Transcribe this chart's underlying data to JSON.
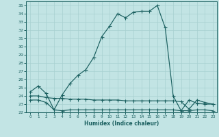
{
  "title": "",
  "xlabel": "Humidex (Indice chaleur)",
  "ylabel": "",
  "xlim": [
    -0.5,
    23.5
  ],
  "ylim": [
    22,
    35.5
  ],
  "yticks": [
    22,
    23,
    24,
    25,
    26,
    27,
    28,
    29,
    30,
    31,
    32,
    33,
    34,
    35
  ],
  "xticks": [
    0,
    1,
    2,
    3,
    4,
    5,
    6,
    7,
    8,
    9,
    10,
    11,
    12,
    13,
    14,
    15,
    16,
    17,
    18,
    19,
    20,
    21,
    22,
    23
  ],
  "bg_color": "#c2e4e4",
  "grid_color": "#a8d0d0",
  "line_color": "#1a5f5f",
  "line1_x": [
    0,
    1,
    2,
    3,
    4,
    5,
    6,
    7,
    8,
    9,
    10,
    11,
    12,
    13,
    14,
    15,
    16,
    17,
    18,
    19,
    20,
    21,
    22,
    23
  ],
  "line1_y": [
    24.5,
    25.2,
    24.3,
    22.3,
    24.1,
    25.5,
    26.5,
    27.2,
    28.7,
    31.2,
    32.5,
    34.0,
    33.5,
    34.2,
    34.3,
    34.3,
    35.0,
    32.3,
    24.0,
    22.2,
    23.5,
    23.1,
    23.0,
    23.0
  ],
  "line2_x": [
    0,
    1,
    2,
    3,
    4,
    5,
    6,
    7,
    8,
    9,
    10,
    11,
    12,
    13,
    14,
    15,
    16,
    17,
    18,
    19,
    20,
    21,
    22,
    23
  ],
  "line2_y": [
    24.0,
    24.0,
    23.8,
    23.7,
    23.7,
    23.6,
    23.6,
    23.6,
    23.5,
    23.5,
    23.5,
    23.5,
    23.4,
    23.4,
    23.4,
    23.4,
    23.4,
    23.4,
    23.4,
    23.3,
    22.4,
    23.5,
    23.2,
    23.0
  ],
  "line3_x": [
    0,
    1,
    2,
    3,
    4,
    5,
    6,
    7,
    8,
    9,
    10,
    11,
    12,
    13,
    14,
    15,
    16,
    17,
    18,
    19,
    20,
    21,
    22,
    23
  ],
  "line3_y": [
    23.5,
    23.5,
    23.2,
    22.3,
    22.2,
    22.3,
    22.3,
    22.3,
    22.3,
    22.3,
    22.3,
    22.3,
    22.3,
    22.3,
    22.3,
    22.3,
    22.3,
    22.3,
    22.3,
    22.2,
    22.2,
    22.3,
    22.3,
    22.2
  ]
}
